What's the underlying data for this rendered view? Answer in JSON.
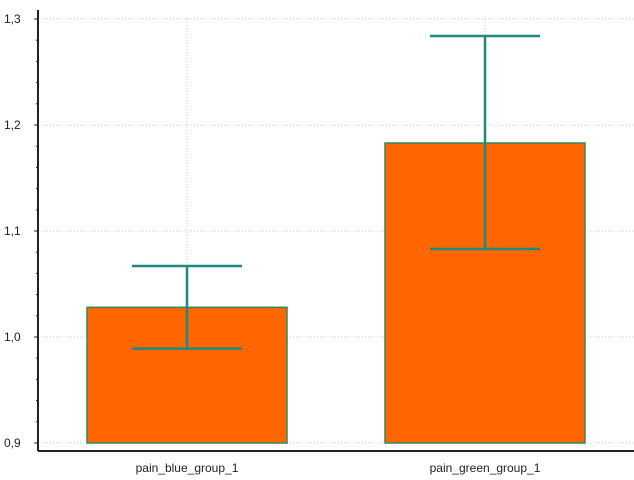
{
  "chart_data": {
    "type": "bar",
    "categories": [
      "pain_blue_group_1",
      "pain_green_group_1"
    ],
    "values": [
      1.028,
      1.183
    ],
    "error_low": [
      0.989,
      1.083
    ],
    "error_high": [
      1.067,
      1.284
    ],
    "ylim": [
      0.9,
      1.3
    ],
    "yticks": [
      "0,9",
      "1,0",
      "1,1",
      "1,2",
      "1,3"
    ],
    "title": "",
    "xlabel": "",
    "ylabel": "",
    "grid": true,
    "colors": {
      "bar_fill": "#ff6600",
      "bar_stroke": "#2e8b57",
      "error_bar": "#1f8a80",
      "grid": "#c8c8c8",
      "axis": "#222222"
    }
  }
}
